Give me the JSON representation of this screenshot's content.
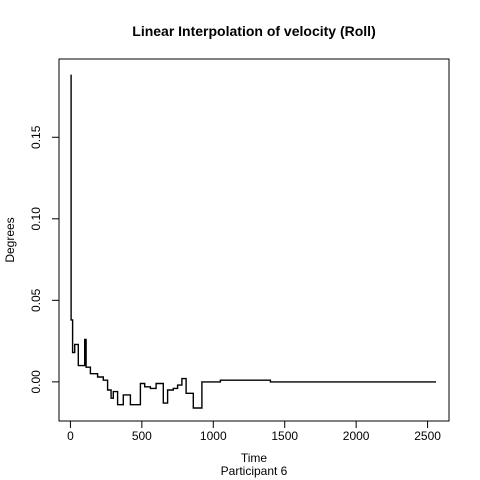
{
  "chart_data": {
    "type": "line",
    "title": "Linear Interpolation of velocity (Roll)",
    "xlabel": "Time",
    "subtitle": "Participant  6",
    "ylabel": "Degrees",
    "xlim": [
      -80,
      2650
    ],
    "ylim": [
      -0.024,
      0.198
    ],
    "xticks": [
      0,
      500,
      1000,
      1500,
      2000,
      2500
    ],
    "xtick_labels": [
      "0",
      "500",
      "1000",
      "1500",
      "2000",
      "2500"
    ],
    "yticks": [
      0.0,
      0.05,
      0.1,
      0.15
    ],
    "ytick_labels": [
      "0.00",
      "0.05",
      "0.10",
      "0.15"
    ],
    "grid": false,
    "color": "#000000",
    "series": [
      {
        "step": true,
        "points": [
          [
            0,
            0.188
          ],
          [
            5,
            0.038
          ],
          [
            15,
            0.018
          ],
          [
            30,
            0.023
          ],
          [
            55,
            0.01
          ],
          [
            100,
            0.026
          ],
          [
            110,
            0.009
          ],
          [
            140,
            0.005
          ],
          [
            190,
            0.003
          ],
          [
            230,
            0.001
          ],
          [
            260,
            -0.005
          ],
          [
            285,
            -0.01
          ],
          [
            300,
            -0.006
          ],
          [
            330,
            -0.014
          ],
          [
            370,
            -0.008
          ],
          [
            420,
            -0.014
          ],
          [
            490,
            -0.001
          ],
          [
            520,
            -0.003
          ],
          [
            560,
            -0.004
          ],
          [
            600,
            -0.001
          ],
          [
            650,
            -0.013
          ],
          [
            680,
            -0.005
          ],
          [
            720,
            -0.004
          ],
          [
            750,
            -0.002
          ],
          [
            780,
            0.002
          ],
          [
            810,
            -0.007
          ],
          [
            860,
            -0.016
          ],
          [
            920,
            0.0
          ],
          [
            1050,
            0.001
          ],
          [
            1300,
            0.001
          ],
          [
            1400,
            0.0
          ],
          [
            1800,
            0.0
          ],
          [
            2400,
            0.0
          ],
          [
            2500,
            0.0
          ],
          [
            2560,
            0.0
          ]
        ]
      }
    ]
  }
}
